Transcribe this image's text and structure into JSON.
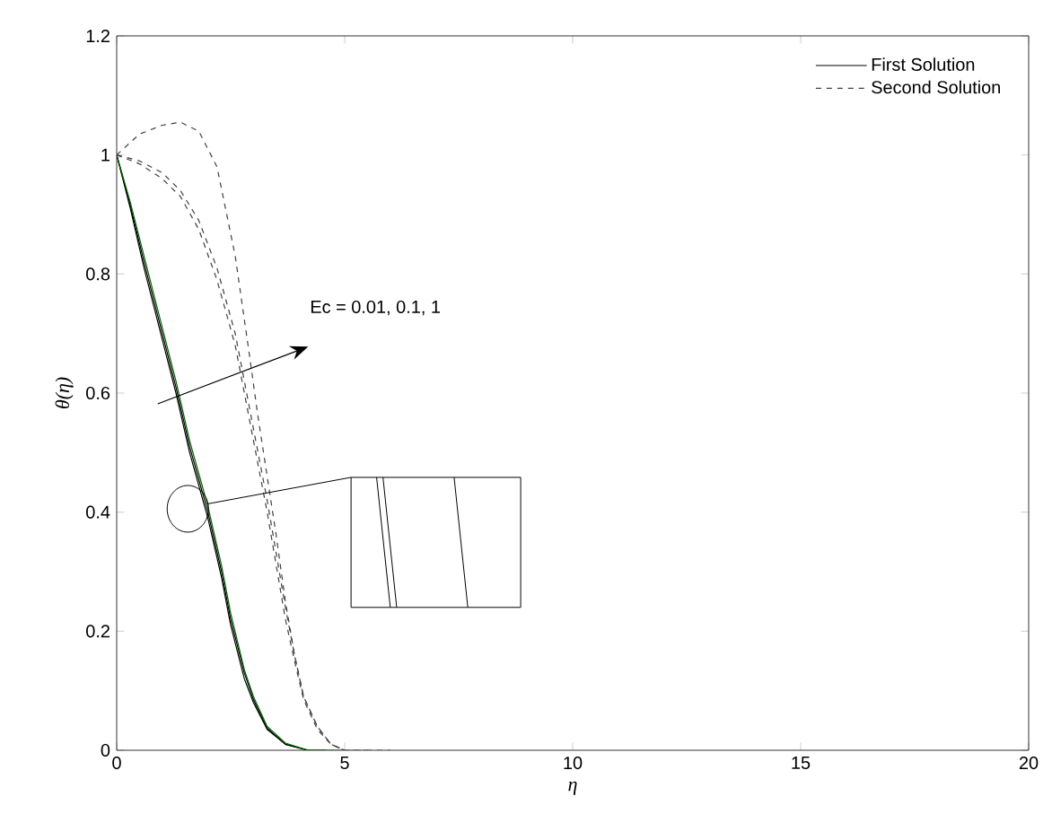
{
  "chart_data": {
    "type": "line",
    "xlabel": "η",
    "ylabel": "θ(η)",
    "xlim": [
      0,
      20
    ],
    "ylim": [
      0,
      1.2
    ],
    "xticks": [
      0,
      5,
      10,
      15,
      20
    ],
    "yticks": [
      0,
      0.2,
      0.4,
      0.6,
      0.8,
      1,
      1.2
    ],
    "legend": "top right",
    "annotations": [
      "Ec = 0.01, 0.1, 1"
    ],
    "series": [
      {
        "name": "First Solution",
        "color": "#000000",
        "line_style": "solid",
        "x": [
          0,
          0.3,
          0.6,
          1.0,
          1.3,
          1.6,
          2.0,
          2.3,
          2.5,
          2.8,
          3.0,
          3.3,
          3.7,
          4.2
        ],
        "values": [
          1,
          0.91,
          0.81,
          0.69,
          0.6,
          0.5,
          0.39,
          0.29,
          0.21,
          0.12,
          0.08,
          0.035,
          0.01,
          0
        ]
      },
      {
        "color": "#000000",
        "line_style": "solid",
        "x": [
          0,
          0.3,
          0.6,
          1.0,
          1.3,
          1.6,
          2.0,
          2.3,
          2.5,
          2.8,
          3.0,
          3.3,
          3.7,
          4.2,
          4.6
        ],
        "values": [
          1,
          0.915,
          0.82,
          0.7,
          0.61,
          0.51,
          0.4,
          0.3,
          0.22,
          0.13,
          0.085,
          0.037,
          0.01,
          0,
          0
        ]
      },
      {
        "color": "#006400",
        "line_style": "solid",
        "x": [
          0,
          0.3,
          0.6,
          1.0,
          1.3,
          1.6,
          2.0,
          2.3,
          2.5,
          2.8,
          3.0,
          3.3,
          3.7,
          4.2,
          5
        ],
        "values": [
          1,
          0.92,
          0.83,
          0.71,
          0.62,
          0.52,
          0.41,
          0.31,
          0.23,
          0.135,
          0.09,
          0.04,
          0.012,
          0,
          0
        ]
      },
      {
        "name": "Second Solution",
        "color": "#404040",
        "line_style": "dashed",
        "x": [
          0,
          0.5,
          1,
          1.4,
          1.8,
          2.2,
          2.6,
          2.9,
          3.1,
          3.3,
          3.5,
          3.7,
          3.9,
          4.1,
          4.4,
          4.7,
          5
        ],
        "values": [
          1,
          1.035,
          1.05,
          1.055,
          1.04,
          0.98,
          0.83,
          0.67,
          0.56,
          0.46,
          0.36,
          0.25,
          0.16,
          0.09,
          0.04,
          0.01,
          0
        ]
      },
      {
        "color": "#404040",
        "line_style": "dashed",
        "x": [
          0,
          0.5,
          1,
          1.4,
          1.8,
          2.2,
          2.6,
          2.9,
          3.1,
          3.3,
          3.5,
          3.7,
          3.9,
          4.1,
          4.4,
          4.7,
          5,
          5.5
        ],
        "values": [
          1,
          0.99,
          0.97,
          0.94,
          0.89,
          0.81,
          0.7,
          0.58,
          0.5,
          0.42,
          0.33,
          0.24,
          0.16,
          0.09,
          0.04,
          0.01,
          0,
          0
        ]
      },
      {
        "color": "#404040",
        "line_style": "dashed",
        "x": [
          0,
          0.5,
          1,
          1.4,
          1.8,
          2.2,
          2.6,
          2.9,
          3.1,
          3.3,
          3.5,
          3.7,
          3.9,
          4.1,
          4.4,
          4.7,
          5,
          6
        ],
        "values": [
          1,
          0.985,
          0.96,
          0.93,
          0.875,
          0.79,
          0.68,
          0.56,
          0.48,
          0.4,
          0.31,
          0.22,
          0.15,
          0.085,
          0.035,
          0.01,
          0,
          0
        ]
      }
    ]
  }
}
